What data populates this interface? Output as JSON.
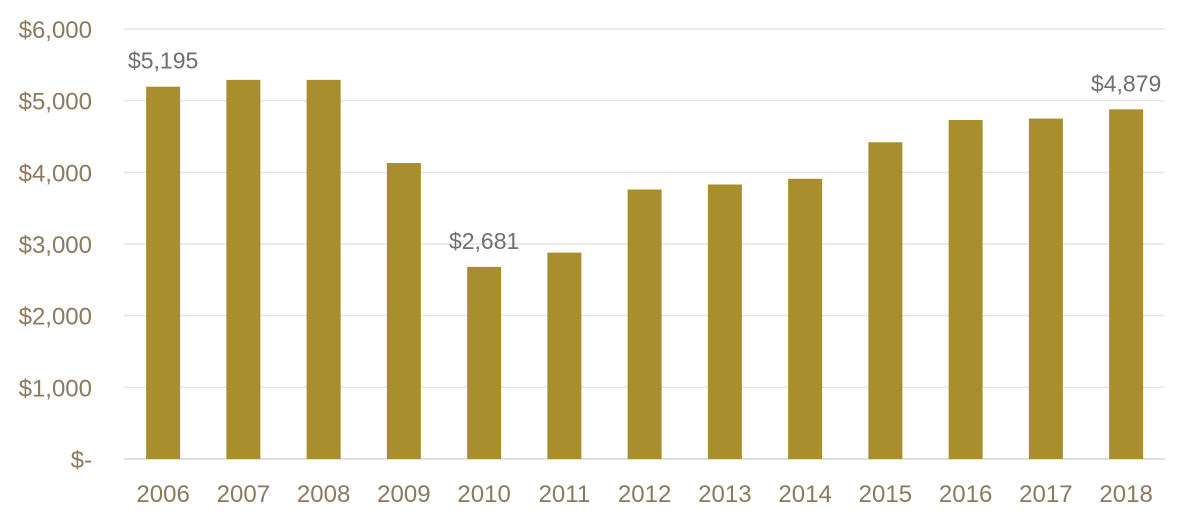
{
  "chart_data": {
    "type": "bar",
    "categories": [
      "2006",
      "2007",
      "2008",
      "2009",
      "2010",
      "2011",
      "2012",
      "2013",
      "2014",
      "2015",
      "2016",
      "2017",
      "2018"
    ],
    "values": [
      5195,
      5290,
      5290,
      4130,
      2681,
      2880,
      3760,
      3830,
      3910,
      4420,
      4730,
      4750,
      4879
    ],
    "data_labels": [
      {
        "index": 0,
        "text": "$5,195"
      },
      {
        "index": 4,
        "text": "$2,681"
      },
      {
        "index": 12,
        "text": "$4,879"
      }
    ],
    "yticks": [
      {
        "value": 0,
        "label": "$-"
      },
      {
        "value": 1000,
        "label": "$1,000"
      },
      {
        "value": 2000,
        "label": "$2,000"
      },
      {
        "value": 3000,
        "label": "$3,000"
      },
      {
        "value": 4000,
        "label": "$4,000"
      },
      {
        "value": 5000,
        "label": "$5,000"
      },
      {
        "value": 6000,
        "label": "$6,000"
      }
    ],
    "ylim": [
      0,
      6000
    ],
    "grid": true,
    "title": "",
    "xlabel": "",
    "ylabel": "",
    "colors": {
      "bar": "#a98e2e",
      "tick_text": "#8c7a5e",
      "label_text": "#6f6f6f",
      "grid": "#e6e6e6"
    }
  }
}
